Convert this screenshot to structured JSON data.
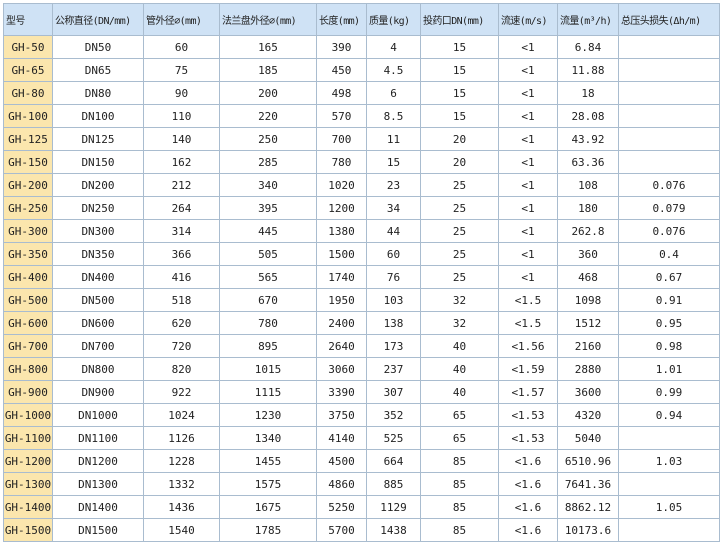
{
  "table": {
    "header": [
      "型号",
      "公称直径(DN/mm)",
      "管外径∅(mm)",
      "法兰盘外径∅(mm)",
      "长度(mm)",
      "质量(kg)",
      "投药口DN(mm)",
      "流速(m/s)",
      "流量(m³/h)",
      "总压头损失(Δh/m)"
    ],
    "rows": [
      [
        "GH-50",
        "DN50",
        "60",
        "165",
        "390",
        "4",
        "15",
        "<1",
        "6.84"
      ],
      [
        "GH-65",
        "DN65",
        "75",
        "185",
        "450",
        "4.5",
        "15",
        "<1",
        "11.88"
      ],
      [
        "GH-80",
        "DN80",
        "90",
        "200",
        "498",
        "6",
        "15",
        "<1",
        "18"
      ],
      [
        "GH-100",
        "DN100",
        "110",
        "220",
        "570",
        "8.5",
        "15",
        "<1",
        "28.08"
      ],
      [
        "GH-125",
        "DN125",
        "140",
        "250",
        "700",
        "11",
        "20",
        "<1",
        "43.92"
      ],
      [
        "GH-150",
        "DN150",
        "162",
        "285",
        "780",
        "15",
        "20",
        "<1",
        "63.36"
      ],
      [
        "GH-200",
        "DN200",
        "212",
        "340",
        "1020",
        "23",
        "25",
        "<1",
        "108",
        "0.076"
      ],
      [
        "GH-250",
        "DN250",
        "264",
        "395",
        "1200",
        "34",
        "25",
        "<1",
        "180",
        "0.079"
      ],
      [
        "GH-300",
        "DN300",
        "314",
        "445",
        "1380",
        "44",
        "25",
        "<1",
        "262.8",
        "0.076"
      ],
      [
        "GH-350",
        "DN350",
        "366",
        "505",
        "1500",
        "60",
        "25",
        "<1",
        "360",
        "0.4"
      ],
      [
        "GH-400",
        "DN400",
        "416",
        "565",
        "1740",
        "76",
        "25",
        "<1",
        "468",
        "0.67"
      ],
      [
        "GH-500",
        "DN500",
        "518",
        "670",
        "1950",
        "103",
        "32",
        "<1.5",
        "1098",
        "0.91"
      ],
      [
        "GH-600",
        "DN600",
        "620",
        "780",
        "2400",
        "138",
        "32",
        "<1.5",
        "1512",
        "0.95"
      ],
      [
        "GH-700",
        "DN700",
        "720",
        "895",
        "2640",
        "173",
        "40",
        "<1.56",
        "2160",
        "0.98"
      ],
      [
        "GH-800",
        "DN800",
        "820",
        "1015",
        "3060",
        "237",
        "40",
        "<1.59",
        "2880",
        "1.01"
      ],
      [
        "GH-900",
        "DN900",
        "922",
        "1115",
        "3390",
        "307",
        "40",
        "<1.57",
        "3600",
        "0.99"
      ],
      [
        "GH-1000",
        "DN1000",
        "1024",
        "1230",
        "3750",
        "352",
        "65",
        "<1.53",
        "4320",
        "0.94"
      ],
      [
        "GH-1100",
        "DN1100",
        "1126",
        "1340",
        "4140",
        "525",
        "65",
        "<1.53",
        "5040"
      ],
      [
        "GH-1200",
        "DN1200",
        "1228",
        "1455",
        "4500",
        "664",
        "85",
        "<1.6",
        "6510.96",
        "1.03"
      ],
      [
        "GH-1300",
        "DN1300",
        "1332",
        "1575",
        "4860",
        "885",
        "85",
        "<1.6",
        "7641.36"
      ],
      [
        "GH-1400",
        "DN1400",
        "1436",
        "1675",
        "5250",
        "1129",
        "85",
        "<1.6",
        "8862.12",
        "1.05"
      ],
      [
        "GH-1500",
        "DN1500",
        "1540",
        "1785",
        "5700",
        "1438",
        "85",
        "<1.6",
        "10173.6"
      ]
    ]
  }
}
